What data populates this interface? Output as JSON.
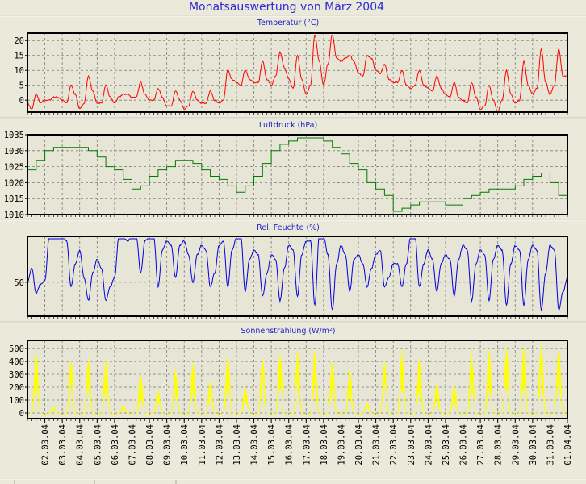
{
  "title": "Monatsauswertung von März 2004",
  "x_axis": {
    "labels": [
      "02.03.04",
      "03.03.04",
      "04.03.04",
      "05.03.04",
      "06.03.04",
      "07.03.04",
      "08.03.04",
      "09.03.04",
      "10.03.04",
      "11.03.04",
      "12.03.04",
      "13.03.04",
      "14.03.04",
      "15.03.04",
      "16.03.04",
      "17.03.04",
      "18.03.04",
      "19.03.04",
      "20.03.04",
      "21.03.04",
      "22.03.04",
      "23.03.04",
      "24.03.04",
      "25.03.04",
      "26.03.04",
      "27.03.04",
      "28.03.04",
      "29.03.04",
      "30.03.04",
      "31.03.04",
      "01.04.04"
    ],
    "range_days": [
      0,
      31
    ]
  },
  "chart_data": [
    {
      "type": "line",
      "title": "Temperatur (°C)",
      "color": "#ff0000",
      "ylim": [
        -4,
        22.5
      ],
      "yticks": [
        0,
        5,
        10,
        15,
        20
      ],
      "ytick_labels": [
        "0",
        "5",
        "10",
        "15",
        "20"
      ],
      "sample_hours": 6,
      "values": [
        -1,
        -3,
        2,
        -1,
        0,
        0,
        1,
        1,
        0,
        -1,
        5,
        2,
        -3,
        -1,
        8,
        3,
        -1,
        -1,
        5,
        1,
        -1,
        1,
        2,
        2,
        1,
        1,
        6,
        2,
        0,
        0,
        4,
        1,
        -2,
        -2,
        3,
        0,
        -3,
        -2,
        3,
        0,
        -1,
        -1,
        3,
        0,
        -1,
        0,
        10,
        7,
        6,
        5,
        10,
        7,
        6,
        6,
        13,
        7,
        5,
        8,
        16,
        11,
        7,
        4,
        15,
        7,
        2,
        5,
        22,
        13,
        5,
        12,
        22,
        14,
        13,
        14,
        15,
        13,
        9,
        8,
        15,
        14,
        10,
        9,
        12,
        7,
        6,
        6,
        10,
        5,
        4,
        5,
        10,
        5,
        4,
        3,
        8,
        4,
        2,
        1,
        6,
        1,
        0,
        -1,
        6,
        1,
        -3,
        -2,
        5,
        0,
        -4,
        0,
        10,
        2,
        -1,
        0,
        13,
        5,
        2,
        4,
        17,
        6,
        2,
        5,
        17,
        8,
        8
      ]
    },
    {
      "type": "line",
      "title": "Luftdruck (hPa)",
      "color": "#007800",
      "ylim": [
        1010,
        1035
      ],
      "yticks": [
        1010,
        1015,
        1020,
        1025,
        1030,
        1035
      ],
      "ytick_labels": [
        "1010",
        "1015",
        "1020",
        "1025",
        "1030",
        "1035"
      ],
      "sample_hours": 12,
      "step": true,
      "values": [
        1024,
        1027,
        1030,
        1031,
        1031,
        1031,
        1031,
        1030,
        1028,
        1025,
        1024,
        1021,
        1018,
        1019,
        1022,
        1024,
        1025,
        1027,
        1027,
        1026,
        1024,
        1022,
        1021,
        1019,
        1017,
        1019,
        1022,
        1026,
        1030,
        1032,
        1033,
        1034,
        1034,
        1034,
        1033,
        1031,
        1029,
        1026,
        1024,
        1020,
        1018,
        1016,
        1011,
        1012,
        1013,
        1014,
        1014,
        1014,
        1013,
        1013,
        1015,
        1016,
        1017,
        1018,
        1018,
        1018,
        1019,
        1021,
        1022,
        1023,
        1020,
        1016,
        1014
      ]
    },
    {
      "type": "line",
      "title": "Rel. Feuchte (%)",
      "color": "#0000e0",
      "ylim": [
        13,
        100
      ],
      "yticks": [
        50
      ],
      "ytick_labels": [
        "50"
      ],
      "sample_hours": 6,
      "values": [
        50,
        65,
        38,
        48,
        52,
        100,
        100,
        100,
        100,
        95,
        45,
        70,
        85,
        55,
        30,
        60,
        75,
        65,
        30,
        45,
        55,
        100,
        100,
        95,
        100,
        100,
        60,
        95,
        100,
        100,
        45,
        85,
        95,
        90,
        55,
        90,
        95,
        80,
        50,
        80,
        90,
        85,
        45,
        60,
        90,
        95,
        45,
        85,
        98,
        100,
        40,
        75,
        85,
        80,
        35,
        60,
        80,
        75,
        30,
        65,
        90,
        85,
        35,
        80,
        95,
        95,
        25,
        100,
        100,
        80,
        20,
        70,
        90,
        80,
        40,
        75,
        80,
        70,
        45,
        65,
        80,
        85,
        45,
        55,
        70,
        70,
        45,
        70,
        100,
        100,
        45,
        70,
        85,
        75,
        40,
        70,
        80,
        75,
        35,
        75,
        90,
        85,
        30,
        70,
        85,
        80,
        30,
        75,
        90,
        85,
        25,
        70,
        90,
        85,
        25,
        75,
        90,
        85,
        20,
        60,
        90,
        85,
        20,
        40,
        55
      ]
    },
    {
      "type": "area",
      "title": "Sonnenstrahlung (W/m²)",
      "color": "#ffff00",
      "ylim": [
        -44,
        563
      ],
      "yticks": [
        0,
        100,
        200,
        300,
        400,
        500
      ],
      "ytick_labels": [
        "0",
        "100",
        "200",
        "300",
        "400",
        "500"
      ],
      "daily_peak_values": [
        500,
        50,
        410,
        430,
        440,
        60,
        310,
        180,
        350,
        400,
        260,
        450,
        210,
        440,
        480,
        500,
        490,
        410,
        350,
        80,
        400,
        500,
        430,
        240,
        230,
        510,
        500,
        520,
        530,
        550,
        500
      ]
    }
  ]
}
